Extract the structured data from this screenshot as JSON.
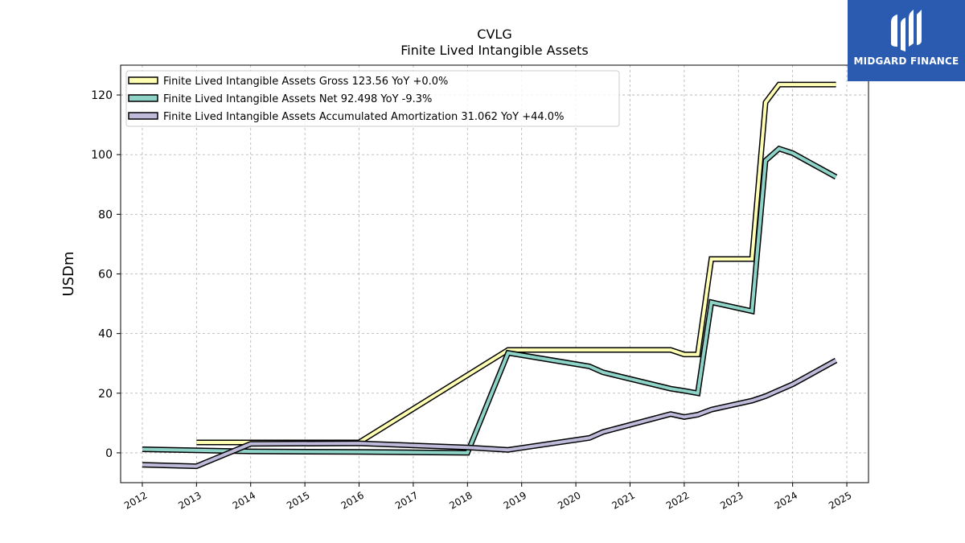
{
  "brand": {
    "name": "MIDGARD FINANCE",
    "color": "#2a5bb0"
  },
  "chart_data": {
    "type": "line",
    "title": "CVLG",
    "subtitle": "Finite Lived Intangible Assets",
    "ylabel": "USDm",
    "xlabel": "",
    "xlim": [
      2011.6,
      2025.4
    ],
    "ylim": [
      -10,
      130
    ],
    "yticks": [
      0,
      20,
      40,
      60,
      80,
      100,
      120
    ],
    "xticks": [
      "2012",
      "2013",
      "2014",
      "2015",
      "2016",
      "2017",
      "2018",
      "2019",
      "2020",
      "2021",
      "2022",
      "2023",
      "2024",
      "2025"
    ],
    "grid": true,
    "legend_position": "top-left",
    "series": [
      {
        "name": "Finite Lived Intangible Assets Gross  123.56 YoY +0.0%",
        "color": "#ffffb3",
        "x": [
          2013.0,
          2014.0,
          2016.0,
          2018.75,
          2021.75,
          2022.0,
          2022.25,
          2022.5,
          2023.25,
          2023.5,
          2023.75,
          2024.0,
          2024.8
        ],
        "y": [
          3.5,
          3.5,
          3.5,
          34.5,
          34.5,
          33.0,
          33.0,
          65.0,
          65.0,
          117.5,
          123.5,
          123.5,
          123.5
        ]
      },
      {
        "name": "Finite Lived Intangible Assets Net  92.498 YoY -9.3%",
        "color": "#8dd3c7",
        "x": [
          2012.0,
          2014.0,
          2016.0,
          2018.0,
          2018.75,
          2020.25,
          2020.5,
          2021.75,
          2022.0,
          2022.25,
          2022.5,
          2023.25,
          2023.5,
          2023.75,
          2024.0,
          2024.8
        ],
        "y": [
          1.2,
          0.5,
          0.3,
          0.0,
          33.5,
          29.0,
          27.0,
          21.5,
          20.8,
          20.0,
          50.5,
          47.5,
          98.0,
          102.0,
          100.5,
          92.5
        ]
      },
      {
        "name": "Finite Lived Intangible Assets Accumulated Amortization  31.062 YoY +44.0%",
        "color": "#bebada",
        "x": [
          2012.0,
          2013.0,
          2014.0,
          2016.0,
          2018.0,
          2018.75,
          2020.25,
          2020.5,
          2021.75,
          2022.0,
          2022.25,
          2022.5,
          2023.25,
          2023.5,
          2023.75,
          2024.0,
          2024.8
        ],
        "y": [
          -4.0,
          -4.5,
          3.0,
          3.2,
          1.8,
          1.0,
          5.0,
          7.0,
          13.0,
          12.0,
          12.8,
          14.5,
          17.5,
          19.0,
          21.0,
          23.0,
          31.0
        ]
      }
    ]
  }
}
